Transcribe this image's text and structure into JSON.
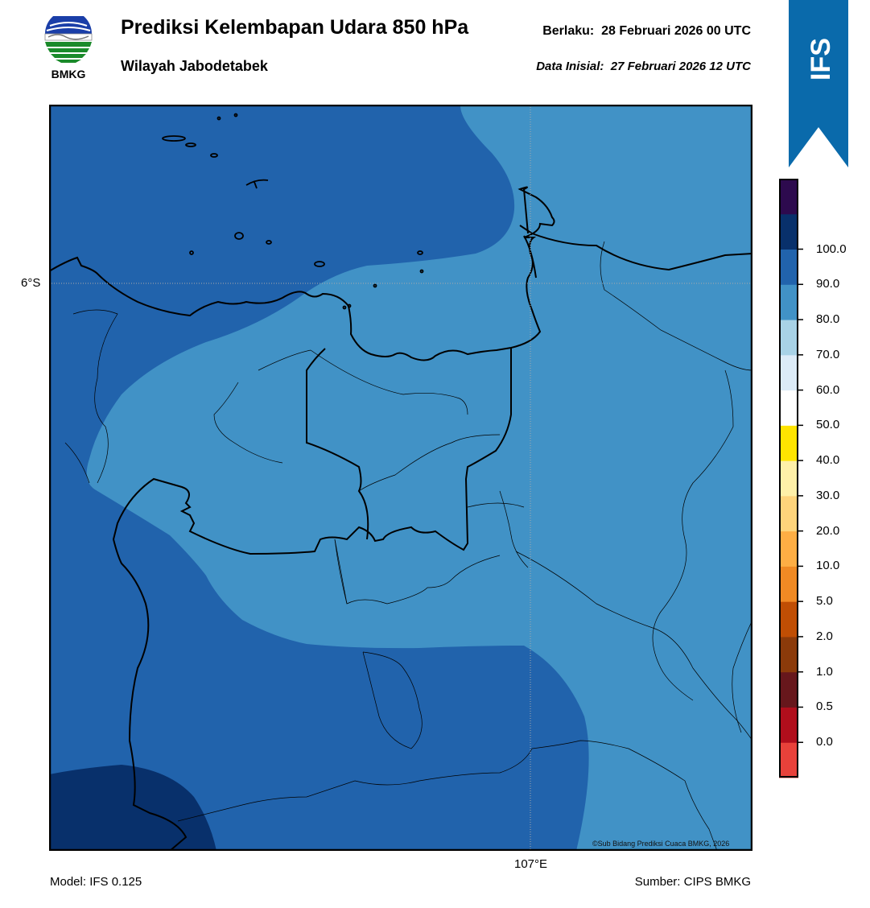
{
  "header": {
    "title": "Prediksi Kelembapan Udara 850 hPa",
    "subtitle": "Wilayah Jabodetabek",
    "valid_label": "Berlaku:",
    "valid_time": "28 Februari 2026 00 UTC",
    "init_label": "Data Inisial:",
    "init_time": "27 Februari 2026 12 UTC"
  },
  "logo": {
    "icon": "bmkg-logo",
    "text": "BMKG"
  },
  "badge": {
    "text": "IFS",
    "color": "#0a6aab"
  },
  "map": {
    "lat_label": "6°S",
    "lon_label": "107°E",
    "credit": "©Sub Bidang Prediksi Cuaca BMKG, 2026",
    "field_colors": {
      "70-80": "#4192c6",
      "80-90": "#2163ac",
      "90-100": "#08306b"
    }
  },
  "footer": {
    "model": "Model: IFS 0.125",
    "source": "Sumber: CIPS BMKG"
  },
  "colorbar": {
    "bins": [
      {
        "color": "#e8413a"
      },
      {
        "color": "#b10e1c"
      },
      {
        "color": "#67171c"
      },
      {
        "color": "#8b3a0a"
      },
      {
        "color": "#c04e04"
      },
      {
        "color": "#f08a24"
      },
      {
        "color": "#feae44"
      },
      {
        "color": "#fed47b"
      },
      {
        "color": "#fef0a8"
      },
      {
        "color": "#ffe400"
      },
      {
        "color": "#ffffff"
      },
      {
        "color": "#dcebf7"
      },
      {
        "color": "#a8d2e6"
      },
      {
        "color": "#4192c6"
      },
      {
        "color": "#2163ac"
      },
      {
        "color": "#08306b"
      },
      {
        "color": "#2d0a4e"
      }
    ],
    "labels": [
      "0.0",
      "0.5",
      "1.0",
      "2.0",
      "5.0",
      "10.0",
      "20.0",
      "30.0",
      "40.0",
      "50.0",
      "60.0",
      "70.0",
      "80.0",
      "90.0",
      "100.0"
    ]
  }
}
